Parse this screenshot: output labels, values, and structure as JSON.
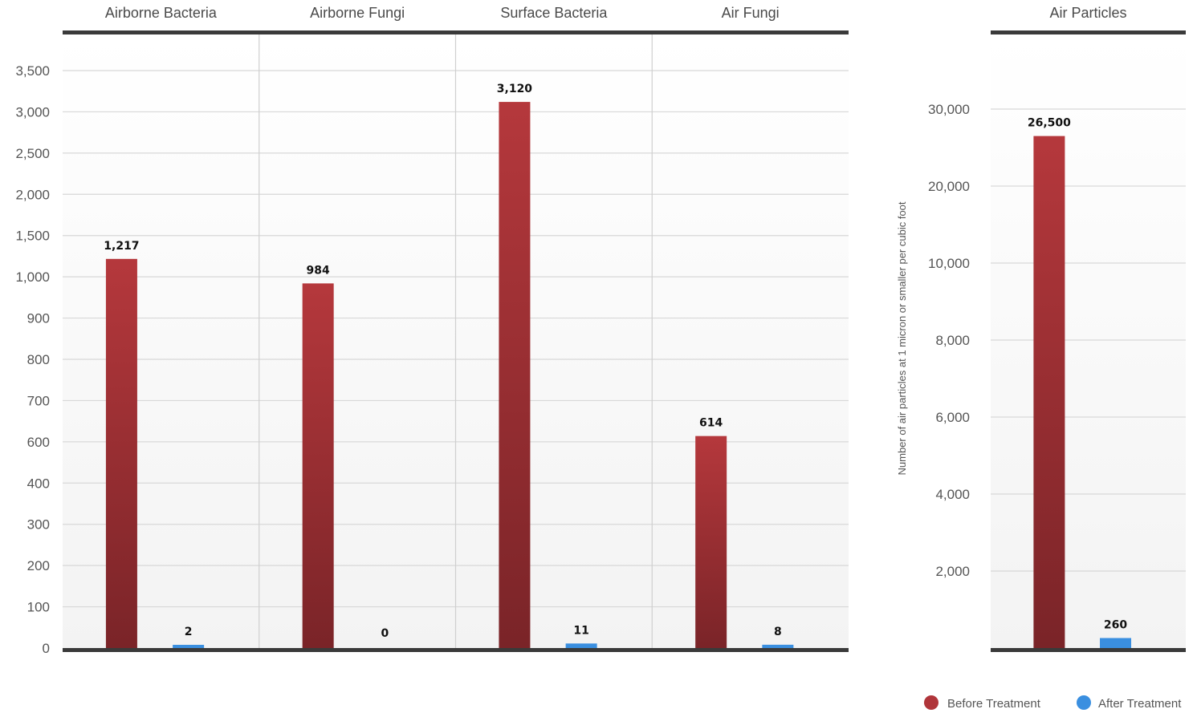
{
  "chart_data": [
    {
      "type": "bar",
      "categories": [
        "Airborne Bacteria",
        "Airborne Fungi",
        "Surface Bacteria",
        "Air Fungi"
      ],
      "series": [
        {
          "name": "Before Treatment",
          "values": [
            1217,
            984,
            3120,
            614
          ]
        },
        {
          "name": "After Treatment",
          "values": [
            2,
            0,
            11,
            8
          ]
        }
      ],
      "value_labels": [
        [
          "1,217",
          "984",
          "3,120",
          "614"
        ],
        [
          "2",
          "0",
          "11",
          "8"
        ]
      ],
      "y_ticks": [
        0,
        100,
        200,
        300,
        400,
        600,
        700,
        800,
        900,
        1000,
        1500,
        2000,
        2500,
        3000,
        3500
      ],
      "y_tick_labels": [
        "0",
        "100",
        "200",
        "300",
        "400",
        "600",
        "700",
        "800",
        "900",
        "1,000",
        "1,500",
        "2,000",
        "2,500",
        "3,000",
        "3,500"
      ],
      "y_scale": "non-linear (equally spaced ticks)",
      "ylabel": "",
      "grid": true
    },
    {
      "type": "bar",
      "categories": [
        "Air Particles"
      ],
      "series": [
        {
          "name": "Before Treatment",
          "values": [
            26500
          ]
        },
        {
          "name": "After Treatment",
          "values": [
            260
          ]
        }
      ],
      "value_labels": [
        [
          "26,500"
        ],
        [
          "260"
        ]
      ],
      "y_ticks": [
        0,
        2000,
        4000,
        6000,
        8000,
        10000,
        20000,
        30000
      ],
      "y_tick_labels": [
        "",
        "2,000",
        "4,000",
        "6,000",
        "8,000",
        "10,000",
        "20,000",
        "30,000"
      ],
      "y_scale": "non-linear (equally spaced ticks)",
      "ylabel": "Number of air particles at 1 micron or smaller per cubic foot",
      "grid": true
    }
  ],
  "legend": {
    "placement": "bottom-right",
    "items": [
      {
        "label": "Before Treatment",
        "color": "#b0353a"
      },
      {
        "label": "After Treatment",
        "color": "#3a8fe0"
      }
    ]
  },
  "colors": {
    "before_top": "#b5383c",
    "before_bottom": "#7a2428",
    "after": "#3a8fe0",
    "axis": "#3a3a3a",
    "grid": "#d8d8d8"
  }
}
